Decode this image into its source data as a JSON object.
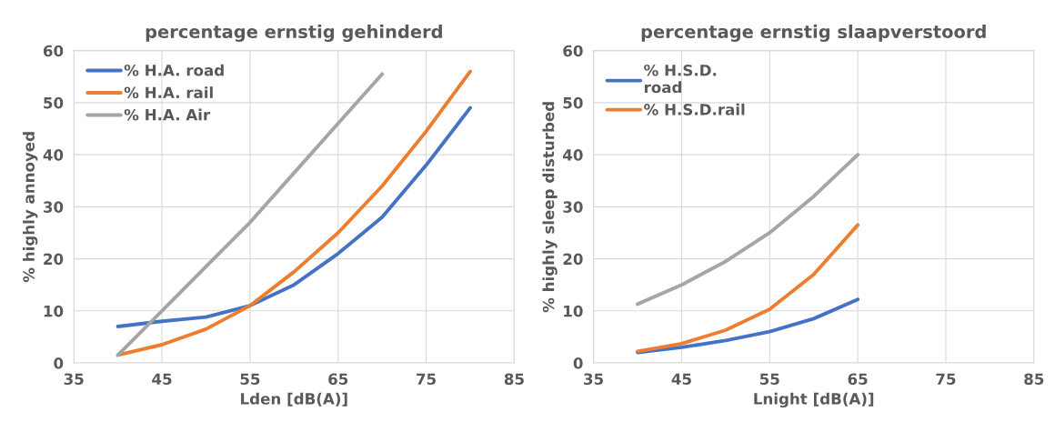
{
  "chart_data": [
    {
      "type": "line",
      "title": "percentage ernstig gehinderd",
      "xlabel": "Lden [dB(A)]",
      "ylabel": "% highly annoyed",
      "xlim": [
        35,
        85
      ],
      "xticks": [
        35,
        45,
        55,
        65,
        75,
        85
      ],
      "ylim": [
        0,
        60
      ],
      "yticks": [
        0,
        10,
        20,
        30,
        40,
        50,
        60
      ],
      "grid": true,
      "legend": "top left",
      "marker": "none",
      "line_style": "solid",
      "series": [
        {
          "name": "% H.A. road",
          "color": "#4472c4",
          "x": [
            40,
            45,
            50,
            55,
            60,
            65,
            70,
            75,
            80
          ],
          "values": [
            7,
            8,
            8.8,
            11,
            15,
            21,
            28,
            38,
            49
          ]
        },
        {
          "name": "% H.A. rail",
          "color": "#ed7d31",
          "x": [
            40,
            45,
            50,
            55,
            60,
            65,
            70,
            75,
            80
          ],
          "values": [
            1.5,
            3.5,
            6.5,
            11,
            17.5,
            25,
            34,
            44.5,
            56
          ]
        },
        {
          "name": "% H.A. Air",
          "color": "#a5a5a5",
          "x": [
            40,
            45,
            50,
            55,
            60,
            65,
            70
          ],
          "values": [
            1.5,
            10,
            18.5,
            27,
            36.5,
            46,
            55.5
          ]
        }
      ]
    },
    {
      "type": "line",
      "title": "percentage ernstig slaapverstoord",
      "xlabel": "Lnight [dB(A)]",
      "ylabel": "% highly sleep disturbed",
      "xlim": [
        35,
        85
      ],
      "xticks": [
        35,
        45,
        55,
        65,
        75,
        85
      ],
      "ylim": [
        0,
        60
      ],
      "yticks": [
        0,
        10,
        20,
        30,
        40,
        50,
        60
      ],
      "grid": true,
      "legend": "top left",
      "marker": "none",
      "line_style": "solid",
      "series": [
        {
          "name": "% H.S.D.\nroad",
          "color": "#4472c4",
          "x": [
            40,
            45,
            50,
            55,
            60,
            65
          ],
          "values": [
            2,
            3,
            4.3,
            6,
            8.5,
            12.2
          ]
        },
        {
          "name": "% H.S.D.rail",
          "color": "#ed7d31",
          "x": [
            40,
            45,
            50,
            55,
            60,
            65
          ],
          "values": [
            2.2,
            3.7,
            6.3,
            10.3,
            17,
            26.5
          ]
        },
        {
          "color": "#a5a5a5",
          "x": [
            40,
            45,
            50,
            55,
            60,
            65
          ],
          "values": [
            11.3,
            15,
            19.5,
            25,
            32,
            40
          ]
        }
      ]
    }
  ]
}
